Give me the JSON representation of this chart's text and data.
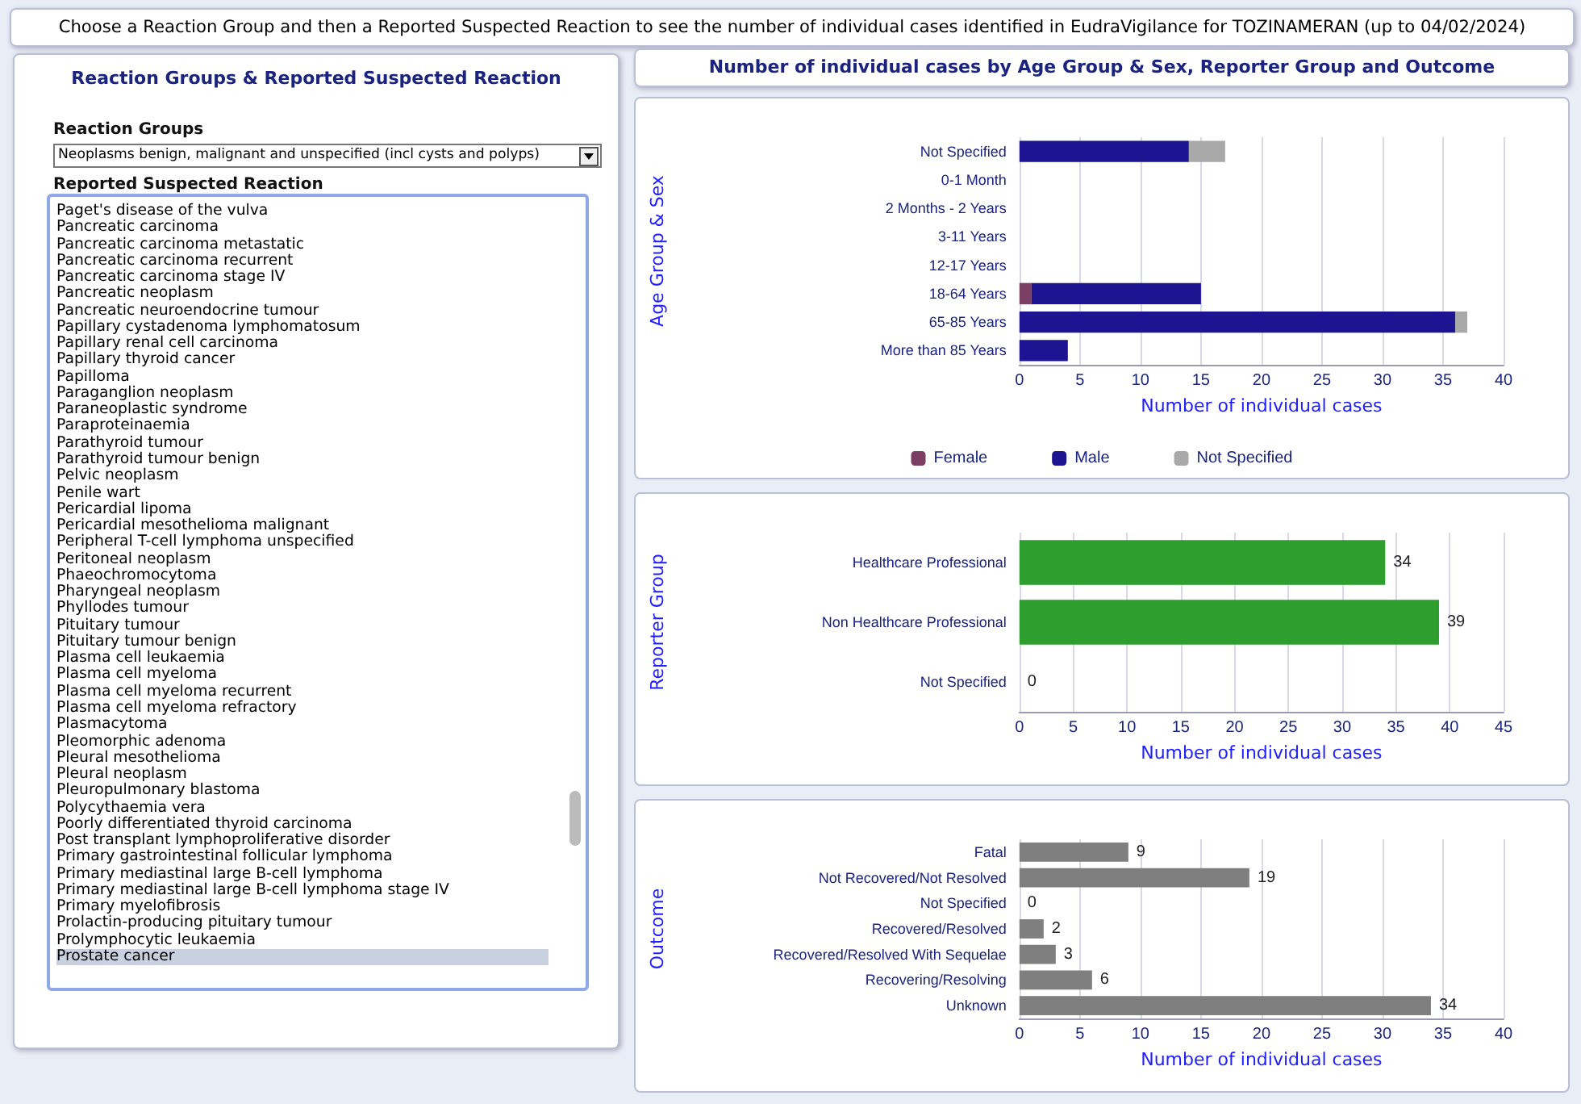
{
  "chart_data": [
    {
      "type": "other",
      "title": "Reaction Groups & Reported Suspected Reaction",
      "annotations": [
        "Choose a Reaction Group and then a Reported Suspected Reaction to see the number of individual cases identified in EudraVigilance for TOZINAMERAN (up to 04/02/2024)",
        "Number of individual cases by Age Group & Sex, Reporter Group and Outcome",
        "Reaction Groups",
        "Neoplasms benign, malignant and unspecified (incl cysts and polyps)",
        "Reported Suspected Reaction",
        "Paget's disease of the vulva",
        "Pancreatic carcinoma",
        "Pancreatic carcinoma metastatic",
        "Pancreatic carcinoma recurrent",
        "Pancreatic carcinoma stage IV",
        "Pancreatic neoplasm",
        "Pancreatic neuroendocrine tumour",
        "Papillary cystadenoma lymphomatosum",
        "Papillary renal cell carcinoma",
        "Papillary thyroid cancer",
        "Papilloma",
        "Paraganglion neoplasm",
        "Paraneoplastic syndrome",
        "Paraproteinaemia",
        "Parathyroid tumour",
        "Parathyroid tumour benign",
        "Pelvic neoplasm",
        "Penile wart",
        "Pericardial lipoma",
        "Pericardial mesothelioma malignant",
        "Peripheral T-cell lymphoma unspecified",
        "Peritoneal neoplasm",
        "Phaeochromocytoma",
        "Pharyngeal neoplasm",
        "Phyllodes tumour",
        "Pituitary tumour",
        "Pituitary tumour benign",
        "Plasma cell leukaemia",
        "Plasma cell myeloma",
        "Plasma cell myeloma recurrent",
        "Plasma cell myeloma refractory",
        "Plasmacytoma",
        "Pleomorphic adenoma",
        "Pleural mesothelioma",
        "Pleural neoplasm",
        "Pleuropulmonary blastoma",
        "Polycythaemia vera",
        "Poorly differentiated thyroid carcinoma",
        "Post transplant lymphoproliferative disorder",
        "Primary gastrointestinal follicular lymphoma",
        "Primary mediastinal large B-cell lymphoma",
        "Primary mediastinal large B-cell lymphoma stage IV",
        "Primary myelofibrosis",
        "Prolactin-producing pituitary tumour",
        "Prolymphocytic leukaemia",
        "Prostate cancer"
      ]
    },
    {
      "type": "bar",
      "orientation": "horizontal",
      "stacked": true,
      "categories": [
        "Not Specified",
        "0-1 Month",
        "2 Months - 2 Years",
        "3-11 Years",
        "12-17 Years",
        "18-64 Years",
        "65-85 Years",
        "More than 85 Years"
      ],
      "series": [
        {
          "name": "Female",
          "color": "#7a3f62",
          "values": [
            null,
            null,
            null,
            null,
            null,
            1,
            null,
            null
          ]
        },
        {
          "name": "Male",
          "color": "#1c1490",
          "values": [
            14,
            null,
            null,
            null,
            null,
            14,
            36,
            4
          ]
        },
        {
          "name": "Not Specified",
          "color": "#a9a9a9",
          "values": [
            3,
            null,
            null,
            null,
            null,
            null,
            1,
            null
          ]
        }
      ],
      "xlim": [
        0,
        40
      ],
      "xticks": [
        0,
        5,
        10,
        15,
        20,
        25,
        30,
        35,
        40
      ],
      "xlabel": "Number of individual cases",
      "ylabel": "Age Group & Sex",
      "legend": "bottom",
      "grid": "x"
    },
    {
      "type": "bar",
      "orientation": "horizontal",
      "categories": [
        "Healthcare Professional",
        "Non Healthcare Professional",
        "Not Specified"
      ],
      "values": [
        34,
        39,
        0
      ],
      "color": "#2e9e2e",
      "xlim": [
        0,
        45
      ],
      "xticks": [
        0,
        5,
        10,
        15,
        20,
        25,
        30,
        35,
        40,
        45
      ],
      "xlabel": "Number of individual cases",
      "ylabel": "Reporter Group",
      "data_labels": true,
      "grid": "x"
    },
    {
      "type": "bar",
      "orientation": "horizontal",
      "categories": [
        "Fatal",
        "Not Recovered/Not Resolved",
        "Not Specified",
        "Recovered/Resolved",
        "Recovered/Resolved With Sequelae",
        "Recovering/Resolving",
        "Unknown"
      ],
      "values": [
        9,
        19,
        0,
        2,
        3,
        6,
        34
      ],
      "color": "#7f7f7f",
      "xlim": [
        0,
        40
      ],
      "xticks": [
        0,
        5,
        10,
        15,
        20,
        25,
        30,
        35,
        40
      ],
      "xlabel": "Number of individual cases",
      "ylabel": "Outcome",
      "data_labels": true,
      "grid": "x"
    }
  ]
}
